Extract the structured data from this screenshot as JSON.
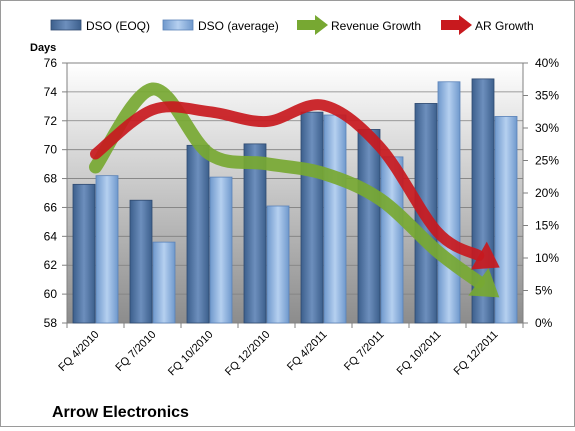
{
  "chart_data": {
    "type": "bar",
    "title": "Arrow Electronics",
    "ylabel": "Days",
    "ylim": [
      58,
      76
    ],
    "yticks": [
      58,
      60,
      62,
      64,
      66,
      68,
      70,
      72,
      74,
      76
    ],
    "y2lim": [
      0,
      40
    ],
    "y2ticks": [
      "0%",
      "5%",
      "10%",
      "15%",
      "20%",
      "25%",
      "30%",
      "35%",
      "40%"
    ],
    "categories": [
      "FQ 4/2010",
      "FQ 7/2010",
      "FQ 10/2010",
      "FQ 12/2010",
      "FQ 4/2011",
      "FQ 7/2011",
      "FQ 10/2011",
      "FQ 12/2011"
    ],
    "series": [
      {
        "name": "DSO (EOQ)",
        "type": "bar",
        "axis": "left",
        "values": [
          67.6,
          66.5,
          70.3,
          70.4,
          72.6,
          71.4,
          73.2,
          74.9
        ]
      },
      {
        "name": "DSO (average)",
        "type": "bar",
        "axis": "left",
        "values": [
          68.2,
          63.6,
          68.1,
          66.1,
          72.4,
          69.5,
          74.7,
          72.3
        ]
      },
      {
        "name": "Revenue Growth",
        "type": "line",
        "axis": "right",
        "values": [
          24,
          36,
          26,
          24.5,
          23,
          19,
          11,
          4.5
        ]
      },
      {
        "name": "AR Growth",
        "type": "line",
        "axis": "right",
        "values": [
          26,
          32.8,
          32.5,
          31,
          33.5,
          27,
          14,
          9
        ]
      }
    ],
    "colors": {
      "eoq": "#4a6f9f",
      "average": "#8fb4e3",
      "revenue": "#77a832",
      "ar": "#c8191e"
    },
    "grid": true,
    "legend": "top"
  }
}
